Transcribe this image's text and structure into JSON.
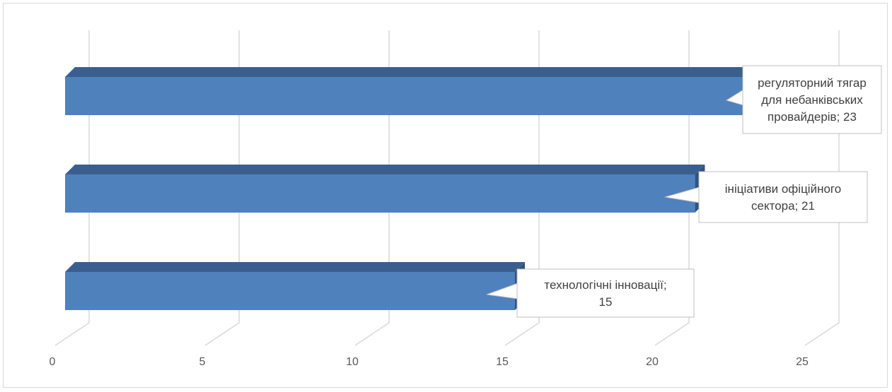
{
  "chart_data": {
    "type": "bar",
    "orientation": "horizontal",
    "style": "3d",
    "title": "",
    "xlabel": "",
    "ylabel": "",
    "xlim": [
      0,
      25
    ],
    "x_ticks": [
      "0",
      "5",
      "10",
      "15",
      "20",
      "25"
    ],
    "grid": true,
    "legend": "none",
    "bar_color": "#4f81bd",
    "bar_top_color": "#3a5f8f",
    "categories": [
      "регуляторний тягар для небанківських провайдерів",
      "ініціативи офіційного сектора",
      "технологічні інновації"
    ],
    "values": [
      23,
      21,
      15
    ],
    "data_labels": [
      [
        "регуляторний тягар",
        "для небанківських",
        "провайдерів; 23"
      ],
      [
        "ініціативи офіційного",
        "сектора; 21"
      ],
      [
        "технологічні інновації;",
        "15"
      ]
    ]
  }
}
